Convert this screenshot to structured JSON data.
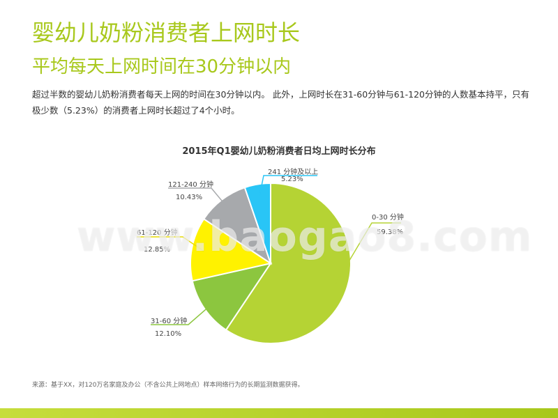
{
  "page": {
    "title": "婴幼儿奶粉消费者上网时长",
    "subtitle": "平均每天上网时间在30分钟以内",
    "description": "超过半数的婴幼儿奶粉消费者每天上网的时间在30分钟以内。 此外，上网时长在31-60分钟与61-120分钟的人数基本持平，只有极少数（5.23%）的消费者上网时长超过了4个小时。",
    "source": "来源：基于XX，对120万名家庭及办公（不含公共上网地点）样本网络行为的长期监测数据获得。",
    "watermark": "www.baogao8.com"
  },
  "chart_data": {
    "type": "pie",
    "title": "2015年Q1婴幼儿奶粉消费者日均上网时长分布",
    "slices": [
      {
        "label": "0-30 分钟",
        "value": 59.38,
        "value_label": "59.38%",
        "color": "#b5d334"
      },
      {
        "label": "31-60 分钟",
        "value": 12.1,
        "value_label": "12.10%",
        "color": "#8cc63f"
      },
      {
        "label": "61-120 分钟",
        "value": 12.85,
        "value_label": "12.85%",
        "color": "#fff200"
      },
      {
        "label": "121-240 分钟",
        "value": 10.43,
        "value_label": "10.43%",
        "color": "#a7a9ac"
      },
      {
        "label": "241 分钟及以上",
        "value": 5.23,
        "value_label": "5.23%",
        "color": "#29c5f6"
      }
    ]
  }
}
